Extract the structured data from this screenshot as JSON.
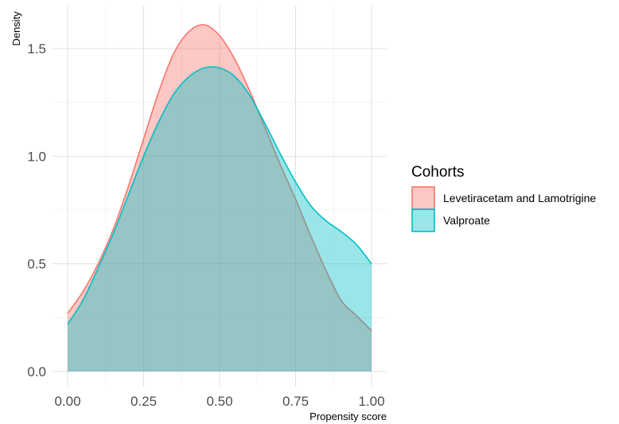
{
  "chart_data": {
    "type": "area",
    "xlabel": "Propensity score",
    "ylabel": "Density",
    "xlim": [
      0.0,
      1.0
    ],
    "ylim": [
      0.0,
      1.6
    ],
    "x_ticks": [
      0.0,
      0.25,
      0.5,
      0.75,
      1.0
    ],
    "x_tick_labels": [
      "0.00",
      "0.25",
      "0.50",
      "0.75",
      "1.00"
    ],
    "y_ticks": [
      0.0,
      0.5,
      1.0,
      1.5
    ],
    "y_tick_labels": [
      "0.0",
      "0.5",
      "1.0",
      "1.5"
    ],
    "grid": true,
    "legend": {
      "title": "Cohorts",
      "placement": "right"
    },
    "series": [
      {
        "name": "Levetiracetam and Lamotrigine",
        "color": "#f8766d",
        "fill": "#f8766d",
        "fill_opacity": 0.4,
        "x": [
          0.0,
          0.05,
          0.1,
          0.15,
          0.2,
          0.25,
          0.3,
          0.35,
          0.4,
          0.45,
          0.5,
          0.55,
          0.6,
          0.65,
          0.7,
          0.75,
          0.8,
          0.85,
          0.9,
          0.95,
          1.0
        ],
        "y": [
          0.27,
          0.37,
          0.5,
          0.66,
          0.86,
          1.08,
          1.3,
          1.48,
          1.58,
          1.61,
          1.56,
          1.45,
          1.3,
          1.13,
          0.96,
          0.8,
          0.63,
          0.47,
          0.33,
          0.26,
          0.19
        ]
      },
      {
        "name": "Valproate",
        "color": "#00bfc4",
        "fill": "#00bfc4",
        "fill_opacity": 0.4,
        "x": [
          0.0,
          0.05,
          0.1,
          0.15,
          0.2,
          0.25,
          0.3,
          0.35,
          0.4,
          0.45,
          0.5,
          0.55,
          0.6,
          0.65,
          0.7,
          0.75,
          0.8,
          0.85,
          0.9,
          0.95,
          1.0
        ],
        "y": [
          0.22,
          0.33,
          0.48,
          0.64,
          0.82,
          1.0,
          1.16,
          1.29,
          1.37,
          1.41,
          1.41,
          1.37,
          1.28,
          1.15,
          1.01,
          0.88,
          0.77,
          0.7,
          0.65,
          0.59,
          0.5
        ]
      }
    ]
  }
}
